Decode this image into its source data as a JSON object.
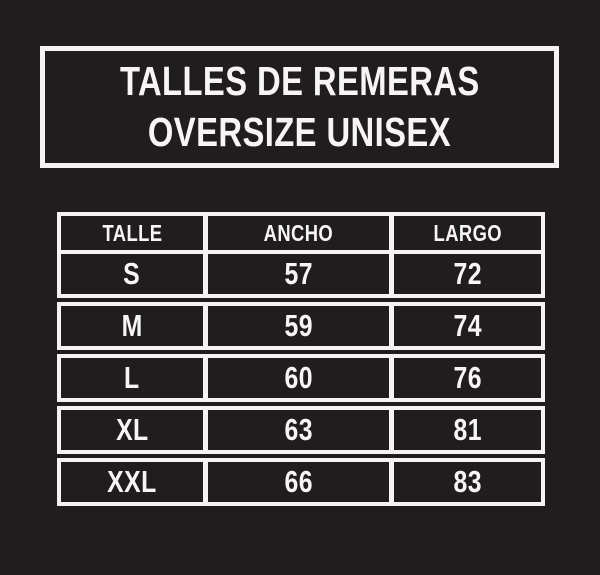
{
  "colors": {
    "background": "#201d1e",
    "line_and_text": "#f4f3f2"
  },
  "title": {
    "line1": "TALLES DE REMERAS",
    "line2": "OVERSIZE UNISEX"
  },
  "table": {
    "headers": {
      "talle": "TALLE",
      "ancho": "ANCHO",
      "largo": "LARGO"
    },
    "rows": [
      {
        "talle": "S",
        "ancho": "57",
        "largo": "72"
      },
      {
        "talle": "M",
        "ancho": "59",
        "largo": "74"
      },
      {
        "talle": "L",
        "ancho": "60",
        "largo": "76"
      },
      {
        "talle": "XL",
        "ancho": "63",
        "largo": "81"
      },
      {
        "talle": "XXL",
        "ancho": "66",
        "largo": "83"
      }
    ]
  },
  "chart_data": {
    "type": "table",
    "title": "TALLES DE REMERAS OVERSIZE UNISEX",
    "columns": [
      "TALLE",
      "ANCHO",
      "LARGO"
    ],
    "rows": [
      [
        "S",
        57,
        72
      ],
      [
        "M",
        59,
        74
      ],
      [
        "L",
        60,
        76
      ],
      [
        "XL",
        63,
        81
      ],
      [
        "XXL",
        66,
        83
      ]
    ],
    "layout": {
      "theme": "white-on-black",
      "header_row": true
    }
  }
}
